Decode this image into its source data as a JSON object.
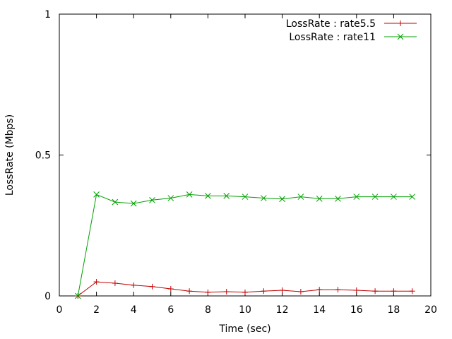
{
  "chart_data": {
    "type": "line",
    "title": "",
    "xlabel": "Time (sec)",
    "ylabel": "LossRate (Mbps)",
    "xlim": [
      0,
      20
    ],
    "ylim": [
      0,
      1
    ],
    "x_ticks": [
      0,
      2,
      4,
      6,
      8,
      10,
      12,
      14,
      16,
      18,
      20
    ],
    "x_tick_labels": [
      "0",
      "2",
      "4",
      "6",
      "8",
      "10",
      "12",
      "14",
      "16",
      "18",
      "20"
    ],
    "y_ticks": [
      0,
      0.5,
      1
    ],
    "y_tick_labels": [
      "0",
      "0.5",
      "1"
    ],
    "grid": false,
    "legend_position": "top-right",
    "series": [
      {
        "name": "LossRate : rate5.5",
        "color": "#c00000",
        "marker": "plus",
        "x": [
          1,
          2,
          3,
          4,
          5,
          6,
          7,
          8,
          9,
          10,
          11,
          12,
          13,
          14,
          15,
          16,
          17,
          18,
          19
        ],
        "y": [
          0.0,
          0.05,
          0.045,
          0.038,
          0.033,
          0.025,
          0.017,
          0.013,
          0.015,
          0.013,
          0.017,
          0.02,
          0.015,
          0.022,
          0.022,
          0.02,
          0.017,
          0.017,
          0.017
        ]
      },
      {
        "name": "LossRate : rate11",
        "color": "#00a000",
        "marker": "cross",
        "x": [
          1,
          2,
          3,
          4,
          5,
          6,
          7,
          8,
          9,
          10,
          11,
          12,
          13,
          14,
          15,
          16,
          17,
          18,
          19
        ],
        "y": [
          0.0,
          0.36,
          0.333,
          0.328,
          0.34,
          0.347,
          0.36,
          0.355,
          0.355,
          0.352,
          0.347,
          0.344,
          0.352,
          0.345,
          0.345,
          0.352,
          0.352,
          0.352,
          0.352
        ]
      }
    ]
  }
}
